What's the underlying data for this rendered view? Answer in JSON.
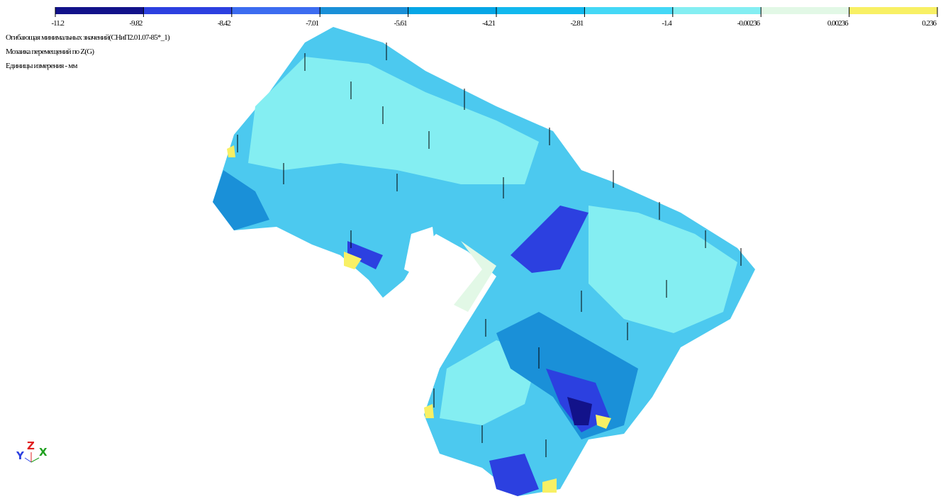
{
  "legend": {
    "labels": [
      "-11.2",
      "-9.82",
      "-8.42",
      "-7.01",
      "-5.61",
      "-4.21",
      "-2.81",
      "-1.4",
      "-0.00236",
      "0.00236",
      "0.236"
    ],
    "colors": [
      "#12128a",
      "#2c40e0",
      "#3c6cf0",
      "#1a90d8",
      "#06a6e6",
      "#12b8ee",
      "#44d8f6",
      "#84eef2",
      "#e2f8e6",
      "#f8f064"
    ]
  },
  "header": {
    "lines": [
      "Огибающая минимальных значений(СНиП2.01.07-85*_1)",
      "Мозаика перемещений по Z(G)",
      "Единицы измерения - мм"
    ]
  },
  "axes": {
    "y": "Y",
    "z": "Z",
    "x": "X"
  }
}
